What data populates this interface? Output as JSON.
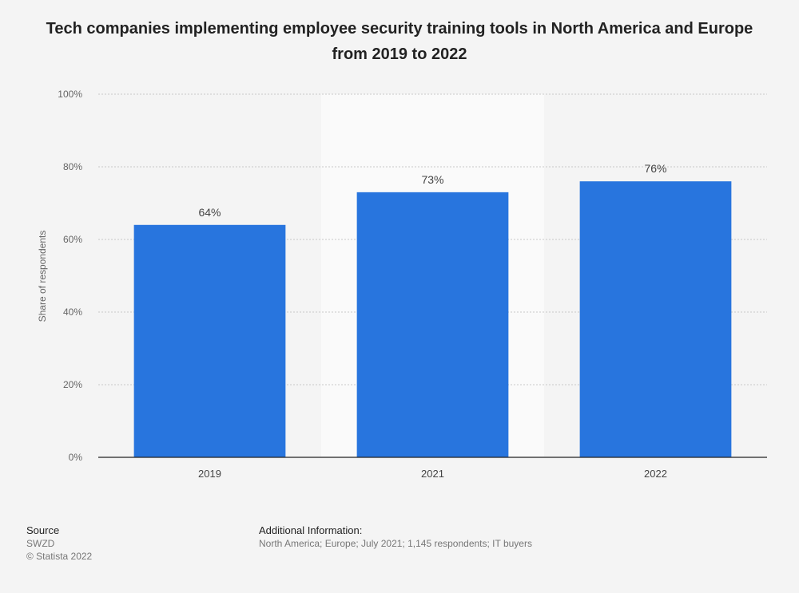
{
  "chart_data": {
    "type": "bar",
    "title": "Tech companies implementing employee security training tools in North America and Europe from 2019 to 2022",
    "categories": [
      "2019",
      "2021",
      "2022"
    ],
    "values": [
      64,
      73,
      76
    ],
    "data_labels": [
      "64%",
      "73%",
      "76%"
    ],
    "xlabel": "",
    "ylabel": "Share of respondents",
    "ylim": [
      0,
      100
    ],
    "yticks": [
      0,
      20,
      40,
      60,
      80,
      100
    ],
    "ytick_labels": [
      "0%",
      "20%",
      "40%",
      "60%",
      "80%",
      "100%"
    ],
    "grid": true,
    "highlighted_category": "2021",
    "bar_color": "#2875de"
  },
  "footer": {
    "source_heading": "Source",
    "source_name": "SWZD",
    "copyright": "© Statista 2022",
    "info_heading": "Additional Information:",
    "info_text": "North America; Europe; July 2021; 1,145 respondents; IT buyers"
  }
}
